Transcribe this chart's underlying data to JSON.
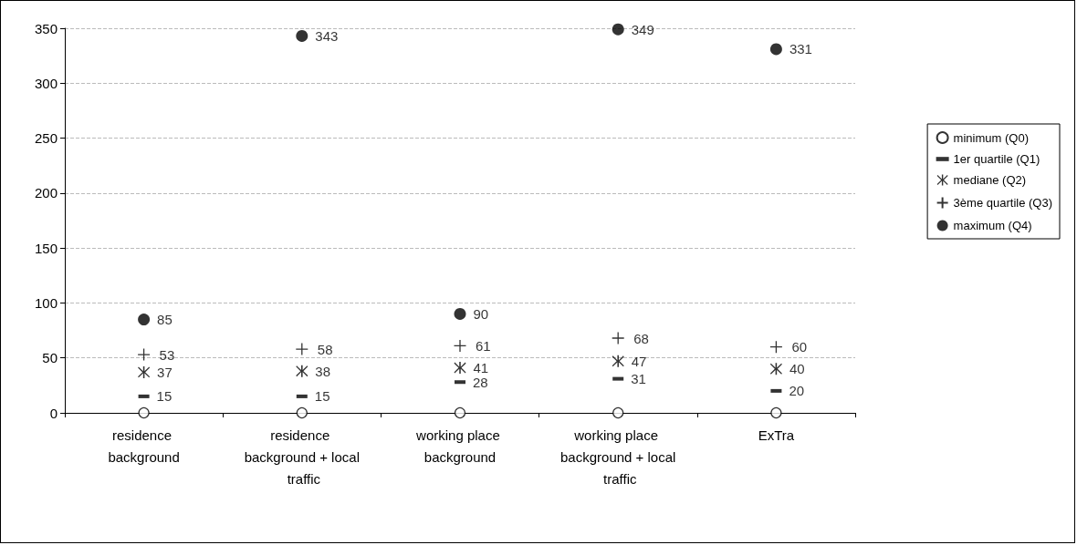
{
  "chart_data": {
    "type": "scatter",
    "categories": [
      "residence background",
      "residence background + local traffic",
      "working place background",
      "working place background + local traffic",
      "ExTra"
    ],
    "series": [
      {
        "name": "minimum (Q0)",
        "color": "#000000",
        "marker": "circle-open",
        "values": [
          0,
          0,
          0,
          0,
          0
        ]
      },
      {
        "name": "1er quartile (Q1)",
        "color": "#000000",
        "values": [
          15,
          15,
          28,
          31,
          20
        ],
        "value_labels": [
          "15",
          "15",
          "28",
          "31",
          "20"
        ]
      },
      {
        "name": "mediane (Q2)",
        "color": "#000000",
        "marker": "star",
        "values": [
          37,
          38,
          41,
          47,
          40
        ],
        "value_labels": [
          "37",
          "38",
          "41",
          "47",
          "40"
        ]
      },
      {
        "name": "3ème quartile (Q3)",
        "color": "#000000",
        "marker": "cross",
        "values": [
          53,
          58,
          61,
          68,
          60
        ],
        "value_labels": [
          "53",
          "58",
          "61",
          "68",
          "60"
        ]
      },
      {
        "name": "maximum (Q4)",
        "color": "#000000",
        "marker": "circle",
        "values": [
          85,
          343,
          90,
          349,
          331
        ],
        "value_labels": [
          "85",
          "343",
          "90",
          "349",
          "331"
        ]
      }
    ],
    "ylim": [
      0,
      350
    ],
    "yticks": [
      0,
      50,
      100,
      150,
      200,
      250,
      300,
      350
    ],
    "grid": "y",
    "legend": "right"
  }
}
